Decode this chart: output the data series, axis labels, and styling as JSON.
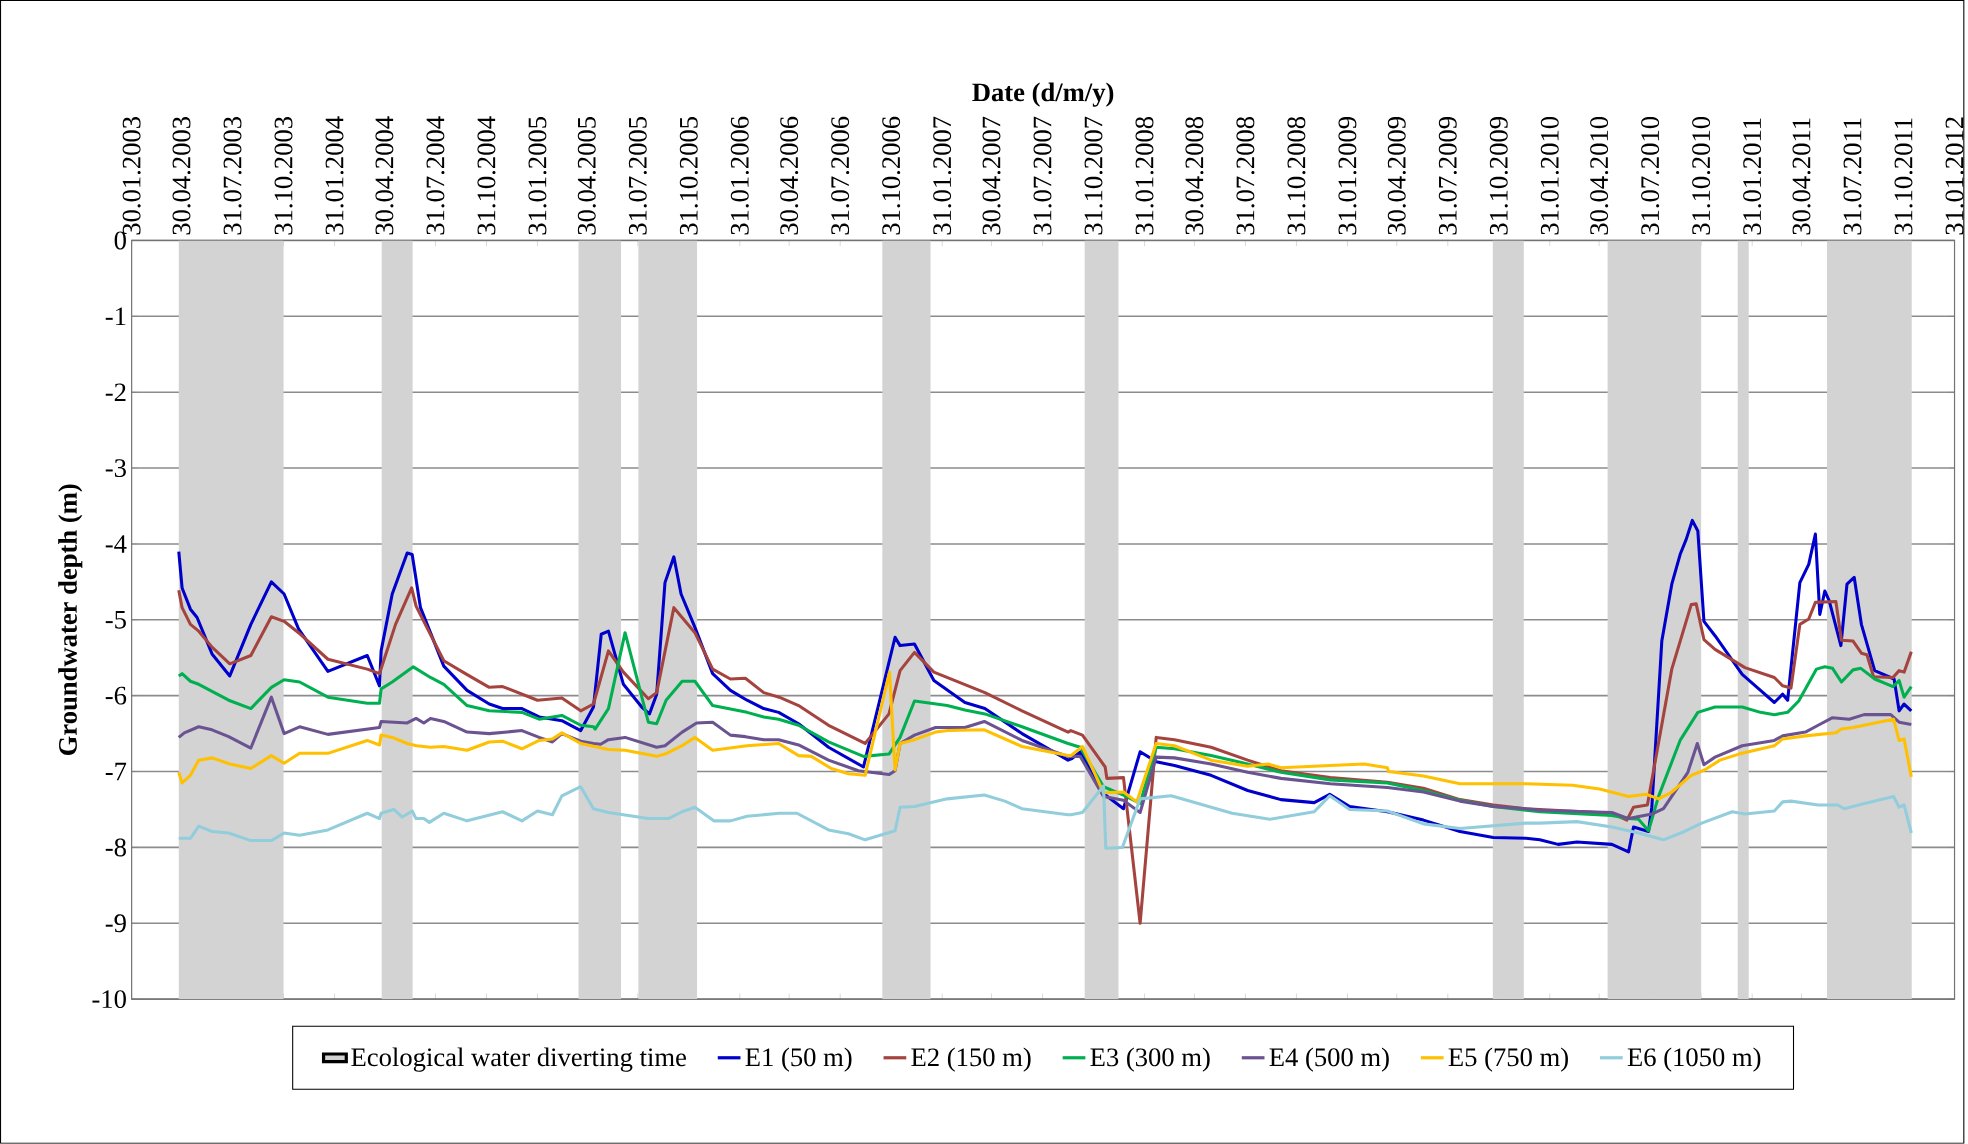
{
  "chart_data": {
    "type": "line",
    "xlabel": "Date (d/m/y)",
    "ylabel": "Groundwater depth (m)",
    "xlim": [
      "2003-01-30",
      "2012-01-31"
    ],
    "ylim": [
      -10,
      0
    ],
    "xticks": [
      {
        "value": "2003-01-30",
        "label": "30.01.2003"
      },
      {
        "value": "2003-04-30",
        "label": "30.04.2003"
      },
      {
        "value": "2003-07-31",
        "label": "31.07.2003"
      },
      {
        "value": "2003-10-31",
        "label": "31.10.2003"
      },
      {
        "value": "2004-01-31",
        "label": "31.01.2004"
      },
      {
        "value": "2004-04-30",
        "label": "30.04.2004"
      },
      {
        "value": "2004-07-31",
        "label": "31.07.2004"
      },
      {
        "value": "2004-10-31",
        "label": "31.10.2004"
      },
      {
        "value": "2005-01-31",
        "label": "31.01.2005"
      },
      {
        "value": "2005-04-30",
        "label": "30.04.2005"
      },
      {
        "value": "2005-07-31",
        "label": "31.07.2005"
      },
      {
        "value": "2005-10-31",
        "label": "31.10.2005"
      },
      {
        "value": "2006-01-31",
        "label": "31.01.2006"
      },
      {
        "value": "2006-04-30",
        "label": "30.04.2006"
      },
      {
        "value": "2006-07-31",
        "label": "31.07.2006"
      },
      {
        "value": "2006-10-31",
        "label": "31.10.2006"
      },
      {
        "value": "2007-01-31",
        "label": "31.01.2007"
      },
      {
        "value": "2007-04-30",
        "label": "30.04.2007"
      },
      {
        "value": "2007-07-31",
        "label": "31.07.2007"
      },
      {
        "value": "2007-10-31",
        "label": "31.10.2007"
      },
      {
        "value": "2008-01-31",
        "label": "31.01.2008"
      },
      {
        "value": "2008-04-30",
        "label": "30.04.2008"
      },
      {
        "value": "2008-07-31",
        "label": "31.07.2008"
      },
      {
        "value": "2008-10-31",
        "label": "31.10.2008"
      },
      {
        "value": "2009-01-31",
        "label": "31.01.2009"
      },
      {
        "value": "2009-04-30",
        "label": "30.04.2009"
      },
      {
        "value": "2009-07-31",
        "label": "31.07.2009"
      },
      {
        "value": "2009-10-31",
        "label": "31.10.2009"
      },
      {
        "value": "2010-01-31",
        "label": "31.01.2010"
      },
      {
        "value": "2010-04-30",
        "label": "30.04.2010"
      },
      {
        "value": "2010-07-31",
        "label": "31.07.2010"
      },
      {
        "value": "2010-10-31",
        "label": "31.10.2010"
      },
      {
        "value": "2011-01-31",
        "label": "31.01.2011"
      },
      {
        "value": "2011-04-30",
        "label": "30.04.2011"
      },
      {
        "value": "2011-07-31",
        "label": "31.07.2011"
      },
      {
        "value": "2011-10-31",
        "label": "31.10.2011"
      },
      {
        "value": "2012-01-31",
        "label": "31.01.2012"
      }
    ],
    "yticks": [
      0,
      -1,
      -2,
      -3,
      -4,
      -5,
      -6,
      -7,
      -8,
      -9,
      -10
    ],
    "grid": "y",
    "legend": "bottom",
    "bands": [
      {
        "axis": "x",
        "from": "2003-04-25",
        "to": "2003-10-31",
        "label": "Ecological water diverting time",
        "color": "#d3d3d3"
      },
      {
        "axis": "x",
        "from": "2004-04-25",
        "to": "2004-06-20",
        "color": "#d3d3d3"
      },
      {
        "axis": "x",
        "from": "2005-04-15",
        "to": "2005-07-01",
        "color": "#d3d3d3"
      },
      {
        "axis": "x",
        "from": "2005-08-01",
        "to": "2005-11-15",
        "color": "#d3d3d3"
      },
      {
        "axis": "x",
        "from": "2006-10-15",
        "to": "2007-01-10",
        "color": "#d3d3d3"
      },
      {
        "axis": "x",
        "from": "2007-10-15",
        "to": "2007-12-15",
        "color": "#d3d3d3"
      },
      {
        "axis": "x",
        "from": "2009-10-20",
        "to": "2009-12-15",
        "color": "#d3d3d3"
      },
      {
        "axis": "x",
        "from": "2010-05-15",
        "to": "2010-10-31",
        "color": "#d3d3d3"
      },
      {
        "axis": "x",
        "from": "2011-01-05",
        "to": "2011-01-25",
        "color": "#d3d3d3"
      },
      {
        "axis": "x",
        "from": "2011-06-15",
        "to": "2011-11-15",
        "color": "#d3d3d3"
      }
    ],
    "series": [
      {
        "name": "E1 (50 m)",
        "color": "#0000cc",
        "x": [
          "2003-04-25",
          "2003-05-01",
          "2003-05-16",
          "2003-05-28",
          "2003-06-24",
          "2003-07-26",
          "2003-09-02",
          "2003-10-09",
          "2003-11-01",
          "2003-11-27",
          "2004-01-19",
          "2004-03-30",
          "2004-04-21",
          "2004-04-24",
          "2004-05-14",
          "2004-06-10",
          "2004-06-19",
          "2004-07-04",
          "2004-08-15",
          "2004-09-26",
          "2004-11-05",
          "2004-11-29",
          "2005-01-03",
          "2005-02-03",
          "2005-03-16",
          "2005-04-19",
          "2005-05-12",
          "2005-05-26",
          "2005-06-08",
          "2005-07-05",
          "2005-08-07",
          "2005-08-21",
          "2005-09-03",
          "2005-09-18",
          "2005-10-04",
          "2005-10-17",
          "2005-11-11",
          "2005-12-13",
          "2006-01-14",
          "2006-02-13",
          "2006-03-15",
          "2006-04-11",
          "2006-05-17",
          "2006-07-10",
          "2006-09-11",
          "2006-11-07",
          "2006-11-16",
          "2006-12-12",
          "2007-01-16",
          "2007-03-13",
          "2007-04-18",
          "2007-06-24",
          "2007-09-15",
          "2007-09-22",
          "2007-10-07",
          "2007-11-18",
          "2007-12-24",
          "2008-01-23",
          "2008-02-21",
          "2008-03-25",
          "2008-05-30",
          "2008-08-04",
          "2008-10-03",
          "2008-12-02",
          "2008-12-30",
          "2009-02-04",
          "2009-04-13",
          "2009-06-17",
          "2009-08-22",
          "2009-10-21",
          "2009-12-19",
          "2010-01-13",
          "2010-02-15",
          "2010-03-21",
          "2010-05-23",
          "2010-06-22",
          "2010-07-01",
          "2010-07-28",
          "2010-08-03",
          "2010-08-21",
          "2010-09-08",
          "2010-09-23",
          "2010-10-04",
          "2010-10-15",
          "2010-10-25",
          "2010-11-05",
          "2010-11-25",
          "2011-01-13",
          "2011-02-15",
          "2011-03-12",
          "2011-03-27",
          "2011-04-05",
          "2011-04-27",
          "2011-05-13",
          "2011-05-25",
          "2011-06-02",
          "2011-06-11",
          "2011-06-19",
          "2011-07-10",
          "2011-07-21",
          "2011-08-03",
          "2011-08-16",
          "2011-09-09",
          "2011-10-14",
          "2011-10-23",
          "2011-11-01",
          "2011-11-14"
        ],
        "values": [
          -4.1,
          -4.58,
          -4.86,
          -4.97,
          -5.45,
          -5.74,
          -5.06,
          -4.5,
          -4.66,
          -5.12,
          -5.68,
          -5.47,
          -5.87,
          -5.41,
          -4.66,
          -4.12,
          -4.14,
          -4.84,
          -5.61,
          -5.93,
          -6.11,
          -6.17,
          -6.17,
          -6.28,
          -6.33,
          -6.46,
          -6.15,
          -5.19,
          -5.15,
          -5.85,
          -6.15,
          -6.24,
          -5.98,
          -4.51,
          -4.17,
          -4.66,
          -5.1,
          -5.71,
          -5.93,
          -6.06,
          -6.17,
          -6.22,
          -6.37,
          -6.68,
          -6.94,
          -5.23,
          -5.34,
          -5.32,
          -5.8,
          -6.09,
          -6.17,
          -6.5,
          -6.85,
          -6.83,
          -6.74,
          -7.29,
          -7.49,
          -6.74,
          -6.87,
          -6.92,
          -7.05,
          -7.25,
          -7.37,
          -7.41,
          -7.3,
          -7.46,
          -7.53,
          -7.64,
          -7.79,
          -7.87,
          -7.88,
          -7.9,
          -7.96,
          -7.93,
          -7.96,
          -8.06,
          -7.73,
          -7.79,
          -7.47,
          -5.28,
          -4.53,
          -4.14,
          -3.94,
          -3.69,
          -3.83,
          -5.02,
          -5.21,
          -5.72,
          -5.93,
          -6.09,
          -5.98,
          -6.06,
          -4.51,
          -4.27,
          -3.87,
          -4.93,
          -4.62,
          -4.75,
          -5.34,
          -4.53,
          -4.44,
          -5.06,
          -5.67,
          -5.78,
          -6.2,
          -6.11,
          -6.2
        ]
      },
      {
        "name": "E2 (150 m)",
        "color": "#a5443f",
        "x": [
          "2003-04-25",
          "2003-05-01",
          "2003-05-16",
          "2003-05-31",
          "2003-06-24",
          "2003-07-26",
          "2003-09-02",
          "2003-10-09",
          "2003-11-01",
          "2003-11-27",
          "2004-01-19",
          "2004-03-30",
          "2004-04-21",
          "2004-05-20",
          "2004-06-18",
          "2004-06-26",
          "2004-08-15",
          "2004-09-23",
          "2004-11-05",
          "2004-11-29",
          "2005-01-31",
          "2005-03-16",
          "2005-04-19",
          "2005-05-12",
          "2005-06-08",
          "2005-07-05",
          "2005-08-19",
          "2005-09-03",
          "2005-10-04",
          "2005-11-11",
          "2005-12-13",
          "2006-01-14",
          "2006-02-10",
          "2006-03-15",
          "2006-04-12",
          "2006-05-17",
          "2006-07-10",
          "2006-09-14",
          "2006-10-27",
          "2006-11-16",
          "2006-12-12",
          "2007-01-16",
          "2007-04-18",
          "2007-06-24",
          "2007-09-15",
          "2007-09-20",
          "2007-10-11",
          "2007-11-21",
          "2007-11-24",
          "2007-12-24",
          "2008-01-23",
          "2008-02-21",
          "2008-03-25",
          "2008-05-30",
          "2008-08-04",
          "2008-10-03",
          "2008-12-31",
          "2009-04-13",
          "2009-06-17",
          "2009-08-22",
          "2009-10-21",
          "2009-12-19",
          "2010-01-13",
          "2010-05-23",
          "2010-06-19",
          "2010-07-01",
          "2010-07-26",
          "2010-09-08",
          "2010-10-13",
          "2010-10-22",
          "2010-11-05",
          "2010-11-25",
          "2011-01-18",
          "2011-03-12",
          "2011-03-27",
          "2011-04-11",
          "2011-04-27",
          "2011-05-13",
          "2011-05-25",
          "2011-07-01",
          "2011-07-11",
          "2011-08-01",
          "2011-08-16",
          "2011-08-26",
          "2011-09-07",
          "2011-10-12",
          "2011-10-23",
          "2011-11-01",
          "2011-11-14"
        ],
        "values": [
          -4.61,
          -4.84,
          -5.06,
          -5.15,
          -5.36,
          -5.58,
          -5.47,
          -4.96,
          -5.02,
          -5.17,
          -5.52,
          -5.65,
          -5.71,
          -5.06,
          -4.58,
          -4.82,
          -5.54,
          -5.71,
          -5.89,
          -5.88,
          -6.06,
          -6.03,
          -6.2,
          -6.11,
          -5.41,
          -5.69,
          -6.04,
          -5.96,
          -4.84,
          -5.17,
          -5.65,
          -5.78,
          -5.77,
          -5.96,
          -6.02,
          -6.13,
          -6.39,
          -6.63,
          -6.24,
          -5.67,
          -5.43,
          -5.69,
          -5.96,
          -6.2,
          -6.48,
          -6.46,
          -6.52,
          -6.94,
          -7.09,
          -7.08,
          -9.0,
          -6.55,
          -6.58,
          -6.68,
          -6.85,
          -6.99,
          -7.08,
          -7.14,
          -7.22,
          -7.37,
          -7.44,
          -7.49,
          -7.5,
          -7.55,
          -7.64,
          -7.47,
          -7.44,
          -5.65,
          -4.8,
          -4.79,
          -5.26,
          -5.39,
          -5.63,
          -5.76,
          -5.87,
          -5.9,
          -5.06,
          -4.99,
          -4.77,
          -4.76,
          -5.27,
          -5.28,
          -5.44,
          -5.46,
          -5.75,
          -5.76,
          -5.67,
          -5.69,
          -5.42
        ]
      },
      {
        "name": "E3 (300 m)",
        "color": "#00b050",
        "x": [
          "2003-04-25",
          "2003-05-01",
          "2003-05-16",
          "2003-05-31",
          "2003-07-24",
          "2003-09-02",
          "2003-10-09",
          "2003-11-01",
          "2003-11-29",
          "2004-01-19",
          "2004-03-30",
          "2004-04-21",
          "2004-04-24",
          "2004-05-14",
          "2004-06-21",
          "2004-07-22",
          "2004-08-15",
          "2004-09-26",
          "2004-11-05",
          "2005-01-03",
          "2005-02-03",
          "2005-03-16",
          "2005-04-19",
          "2005-05-12",
          "2005-05-15",
          "2005-06-08",
          "2005-07-08",
          "2005-08-19",
          "2005-09-03",
          "2005-09-20",
          "2005-10-19",
          "2005-11-11",
          "2005-12-13",
          "2006-02-13",
          "2006-03-15",
          "2006-04-11",
          "2006-05-17",
          "2006-07-10",
          "2006-09-11",
          "2006-10-27",
          "2006-11-16",
          "2006-12-12",
          "2007-02-09",
          "2007-03-13",
          "2007-04-18",
          "2007-06-24",
          "2007-09-15",
          "2007-10-07",
          "2007-11-18",
          "2007-12-24",
          "2008-01-23",
          "2008-02-21",
          "2008-03-25",
          "2008-05-30",
          "2008-08-04",
          "2008-10-03",
          "2008-12-31",
          "2009-04-13",
          "2009-06-17",
          "2009-08-22",
          "2009-10-21",
          "2009-12-19",
          "2010-01-13",
          "2010-05-23",
          "2010-06-22",
          "2010-07-10",
          "2010-07-28",
          "2010-08-15",
          "2010-09-23",
          "2010-10-25",
          "2010-11-25",
          "2011-01-13",
          "2011-02-15",
          "2011-03-12",
          "2011-04-05",
          "2011-04-25",
          "2011-05-27",
          "2011-06-11",
          "2011-06-25",
          "2011-07-11",
          "2011-08-01",
          "2011-08-15",
          "2011-09-09",
          "2011-10-12",
          "2011-10-23",
          "2011-11-01",
          "2011-11-14"
        ],
        "values": [
          -5.74,
          -5.71,
          -5.81,
          -5.85,
          -6.06,
          -6.17,
          -5.89,
          -5.79,
          -5.82,
          -6.02,
          -6.1,
          -6.1,
          -5.91,
          -5.82,
          -5.62,
          -5.76,
          -5.85,
          -6.13,
          -6.2,
          -6.22,
          -6.31,
          -6.26,
          -6.39,
          -6.41,
          -6.44,
          -6.17,
          -5.17,
          -6.35,
          -6.37,
          -6.06,
          -5.81,
          -5.81,
          -6.13,
          -6.22,
          -6.28,
          -6.31,
          -6.39,
          -6.61,
          -6.8,
          -6.77,
          -6.55,
          -6.07,
          -6.13,
          -6.19,
          -6.24,
          -6.41,
          -6.63,
          -6.68,
          -7.2,
          -7.31,
          -7.42,
          -6.68,
          -6.7,
          -6.79,
          -6.9,
          -7.01,
          -7.11,
          -7.15,
          -7.25,
          -7.38,
          -7.46,
          -7.51,
          -7.53,
          -7.58,
          -7.62,
          -7.63,
          -7.78,
          -7.33,
          -6.59,
          -6.22,
          -6.15,
          -6.15,
          -6.22,
          -6.25,
          -6.22,
          -6.07,
          -5.65,
          -5.62,
          -5.64,
          -5.82,
          -5.66,
          -5.64,
          -5.78,
          -5.88,
          -5.8,
          -6.02,
          -5.88
        ]
      },
      {
        "name": "E4 (500 m)",
        "color": "#6b5392",
        "x": [
          "2003-04-25",
          "2003-05-05",
          "2003-05-31",
          "2003-06-24",
          "2003-07-24",
          "2003-09-02",
          "2003-10-09",
          "2003-11-01",
          "2003-11-29",
          "2004-01-19",
          "2004-04-21",
          "2004-04-24",
          "2004-06-10",
          "2004-06-26",
          "2004-07-10",
          "2004-07-22",
          "2004-08-15",
          "2004-09-26",
          "2004-11-05",
          "2005-01-03",
          "2005-02-03",
          "2005-02-27",
          "2005-03-16",
          "2005-04-19",
          "2005-05-12",
          "2005-05-25",
          "2005-06-08",
          "2005-07-08",
          "2005-09-03",
          "2005-09-18",
          "2005-10-19",
          "2005-11-14",
          "2005-12-13",
          "2006-01-14",
          "2006-02-10",
          "2006-03-15",
          "2006-04-11",
          "2006-05-17",
          "2006-07-10",
          "2006-09-02",
          "2006-10-27",
          "2006-11-07",
          "2006-11-16",
          "2006-12-12",
          "2007-01-19",
          "2007-03-13",
          "2007-04-17",
          "2007-06-24",
          "2007-09-15",
          "2007-10-07",
          "2007-11-18",
          "2007-12-24",
          "2008-01-23",
          "2008-02-21",
          "2008-03-25",
          "2008-05-30",
          "2008-08-04",
          "2008-10-03",
          "2008-12-31",
          "2009-04-13",
          "2009-06-17",
          "2009-08-22",
          "2009-10-21",
          "2009-12-19",
          "2010-01-13",
          "2010-05-23",
          "2010-06-22",
          "2010-08-03",
          "2010-08-24",
          "2010-10-07",
          "2010-10-24",
          "2010-11-05",
          "2010-11-25",
          "2011-01-13",
          "2011-03-12",
          "2011-03-27",
          "2011-05-07",
          "2011-05-30",
          "2011-06-25",
          "2011-07-25",
          "2011-08-21",
          "2011-10-08",
          "2011-10-23",
          "2011-11-14"
        ],
        "values": [
          -6.55,
          -6.49,
          -6.41,
          -6.45,
          -6.54,
          -6.69,
          -6.02,
          -6.5,
          -6.41,
          -6.51,
          -6.42,
          -6.34,
          -6.36,
          -6.3,
          -6.36,
          -6.3,
          -6.34,
          -6.48,
          -6.5,
          -6.46,
          -6.55,
          -6.61,
          -6.5,
          -6.6,
          -6.63,
          -6.64,
          -6.58,
          -6.55,
          -6.68,
          -6.66,
          -6.48,
          -6.36,
          -6.35,
          -6.52,
          -6.54,
          -6.58,
          -6.58,
          -6.65,
          -6.85,
          -6.99,
          -7.04,
          -6.99,
          -6.63,
          -6.52,
          -6.42,
          -6.42,
          -6.34,
          -6.59,
          -6.8,
          -6.8,
          -7.33,
          -7.38,
          -7.54,
          -6.81,
          -6.82,
          -6.9,
          -7.01,
          -7.09,
          -7.16,
          -7.21,
          -7.27,
          -7.39,
          -7.46,
          -7.49,
          -7.51,
          -7.54,
          -7.62,
          -7.56,
          -7.49,
          -7.01,
          -6.63,
          -6.91,
          -6.81,
          -6.66,
          -6.59,
          -6.53,
          -6.48,
          -6.39,
          -6.29,
          -6.31,
          -6.25,
          -6.25,
          -6.35,
          -6.38
        ]
      },
      {
        "name": "E5 (750 m)",
        "color": "#ffc000",
        "x": [
          "2003-04-25",
          "2003-05-01",
          "2003-05-16",
          "2003-05-31",
          "2003-06-24",
          "2003-07-26",
          "2003-09-02",
          "2003-10-09",
          "2003-11-01",
          "2003-11-29",
          "2004-01-19",
          "2004-03-30",
          "2004-04-21",
          "2004-04-24",
          "2004-05-14",
          "2004-06-10",
          "2004-06-27",
          "2004-07-22",
          "2004-08-15",
          "2004-09-26",
          "2004-11-05",
          "2004-11-29",
          "2005-01-03",
          "2005-02-03",
          "2005-02-27",
          "2005-03-16",
          "2005-04-19",
          "2005-06-08",
          "2005-07-08",
          "2005-09-03",
          "2005-09-18",
          "2005-10-19",
          "2005-11-11",
          "2005-12-13",
          "2006-02-13",
          "2006-04-11",
          "2006-05-17",
          "2006-06-09",
          "2006-07-15",
          "2006-08-15",
          "2006-09-14",
          "2006-10-28",
          "2006-11-07",
          "2006-11-16",
          "2006-12-12",
          "2007-01-19",
          "2007-02-11",
          "2007-04-17",
          "2007-06-24",
          "2007-09-15",
          "2007-09-20",
          "2007-10-11",
          "2007-11-18",
          "2007-12-24",
          "2008-01-17",
          "2008-02-21",
          "2008-03-25",
          "2008-05-30",
          "2008-08-04",
          "2008-09-10",
          "2008-10-03",
          "2008-12-31",
          "2009-03-02",
          "2009-04-13",
          "2009-04-15",
          "2009-06-17",
          "2009-08-22",
          "2009-12-19",
          "2010-03-13",
          "2010-05-01",
          "2010-06-22",
          "2010-07-24",
          "2010-08-15",
          "2010-09-08",
          "2010-10-13",
          "2010-11-06",
          "2010-12-04",
          "2011-01-07",
          "2011-03-12",
          "2011-03-27",
          "2011-05-07",
          "2011-07-01",
          "2011-07-11",
          "2011-08-01",
          "2011-09-03",
          "2011-10-13",
          "2011-10-23",
          "2011-11-01",
          "2011-11-14"
        ],
        "values": [
          -7.01,
          -7.15,
          -7.05,
          -6.85,
          -6.82,
          -6.9,
          -6.96,
          -6.79,
          -6.89,
          -6.76,
          -6.76,
          -6.59,
          -6.65,
          -6.52,
          -6.55,
          -6.63,
          -6.66,
          -6.68,
          -6.67,
          -6.72,
          -6.61,
          -6.6,
          -6.7,
          -6.59,
          -6.57,
          -6.49,
          -6.63,
          -6.71,
          -6.72,
          -6.8,
          -6.77,
          -6.66,
          -6.55,
          -6.72,
          -6.66,
          -6.63,
          -6.79,
          -6.8,
          -6.96,
          -7.03,
          -7.05,
          -5.69,
          -6.98,
          -6.63,
          -6.58,
          -6.48,
          -6.46,
          -6.45,
          -6.67,
          -6.79,
          -6.79,
          -6.67,
          -7.28,
          -7.27,
          -7.4,
          -6.63,
          -6.66,
          -6.85,
          -6.93,
          -6.9,
          -6.95,
          -6.92,
          -6.9,
          -6.95,
          -7.0,
          -7.06,
          -7.16,
          -7.16,
          -7.18,
          -7.23,
          -7.33,
          -7.3,
          -7.36,
          -7.27,
          -7.05,
          -6.98,
          -6.85,
          -6.77,
          -6.66,
          -6.57,
          -6.53,
          -6.49,
          -6.44,
          -6.42,
          -6.37,
          -6.31,
          -6.59,
          -6.57,
          -7.07
        ]
      },
      {
        "name": "E6 (1050 m)",
        "color": "#92cddc",
        "x": [
          "2003-04-25",
          "2003-05-16",
          "2003-05-31",
          "2003-06-24",
          "2003-07-24",
          "2003-09-02",
          "2003-10-09",
          "2003-11-01",
          "2003-11-29",
          "2004-01-19",
          "2004-03-30",
          "2004-04-21",
          "2004-04-24",
          "2004-05-17",
          "2004-06-01",
          "2004-06-19",
          "2004-06-26",
          "2004-07-10",
          "2004-07-20",
          "2004-08-15",
          "2004-09-26",
          "2004-11-29",
          "2005-01-03",
          "2005-01-31",
          "2005-02-27",
          "2005-03-16",
          "2005-04-19",
          "2005-05-12",
          "2005-06-08",
          "2005-08-19",
          "2005-09-24",
          "2005-10-19",
          "2005-11-11",
          "2005-12-15",
          "2006-01-14",
          "2006-02-13",
          "2006-04-12",
          "2006-05-14",
          "2006-07-10",
          "2006-08-15",
          "2006-09-14",
          "2006-11-07",
          "2006-11-16",
          "2006-12-12",
          "2007-02-09",
          "2007-04-17",
          "2007-05-24",
          "2007-06-24",
          "2007-09-15",
          "2007-09-20",
          "2007-10-11",
          "2007-11-18",
          "2007-11-22",
          "2007-12-22",
          "2008-01-23",
          "2008-03-19",
          "2008-07-07",
          "2008-09-13",
          "2008-12-02",
          "2008-12-30",
          "2009-02-04",
          "2009-04-13",
          "2009-06-17",
          "2009-08-22",
          "2009-12-19",
          "2010-01-13",
          "2010-03-21",
          "2010-05-23",
          "2010-07-10",
          "2010-08-24",
          "2010-10-01",
          "2010-11-01",
          "2010-12-26",
          "2011-01-18",
          "2011-03-12",
          "2011-03-27",
          "2011-04-11",
          "2011-05-30",
          "2011-07-04",
          "2011-07-16",
          "2011-08-16",
          "2011-10-13",
          "2011-10-23",
          "2011-11-01",
          "2011-11-14"
        ],
        "values": [
          -7.88,
          -7.88,
          -7.72,
          -7.79,
          -7.81,
          -7.91,
          -7.91,
          -7.81,
          -7.84,
          -7.77,
          -7.55,
          -7.62,
          -7.55,
          -7.5,
          -7.6,
          -7.52,
          -7.62,
          -7.62,
          -7.67,
          -7.55,
          -7.65,
          -7.53,
          -7.65,
          -7.52,
          -7.57,
          -7.32,
          -7.2,
          -7.49,
          -7.54,
          -7.62,
          -7.62,
          -7.53,
          -7.47,
          -7.65,
          -7.65,
          -7.59,
          -7.55,
          -7.55,
          -7.77,
          -7.82,
          -7.9,
          -7.78,
          -7.47,
          -7.46,
          -7.36,
          -7.31,
          -7.39,
          -7.49,
          -7.57,
          -7.57,
          -7.54,
          -7.19,
          -8.01,
          -8.0,
          -7.36,
          -7.32,
          -7.55,
          -7.63,
          -7.53,
          -7.32,
          -7.5,
          -7.52,
          -7.69,
          -7.75,
          -7.68,
          -7.68,
          -7.66,
          -7.73,
          -7.81,
          -7.9,
          -7.79,
          -7.68,
          -7.53,
          -7.56,
          -7.52,
          -7.4,
          -7.39,
          -7.44,
          -7.44,
          -7.49,
          -7.43,
          -7.33,
          -7.47,
          -7.44,
          -7.81
        ]
      }
    ]
  }
}
